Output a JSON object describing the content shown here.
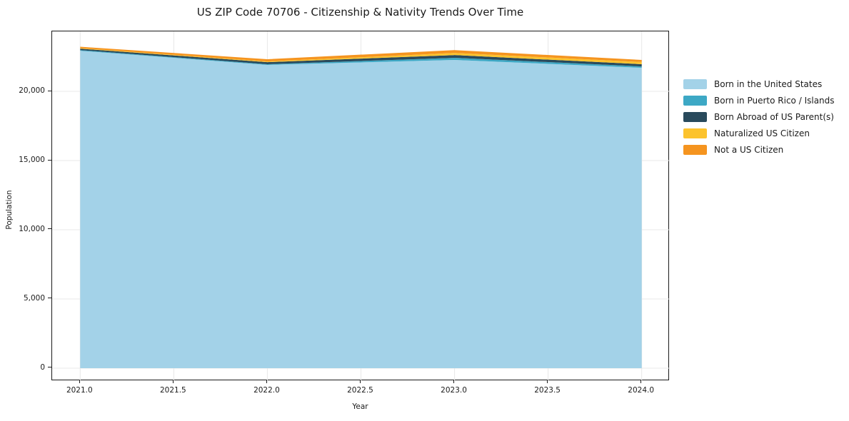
{
  "chart_data": {
    "type": "area",
    "stacked": true,
    "title": "US ZIP Code 70706 - Citizenship & Nativity Trends Over Time",
    "xlabel": "Year",
    "ylabel": "Population",
    "x": [
      2021,
      2022,
      2023,
      2024
    ],
    "series": [
      {
        "name": "Born in the United States",
        "color": "#a3d2e8",
        "values": [
          22930,
          21910,
          22270,
          21700
        ]
      },
      {
        "name": "Born in Puerto Rico / Islands",
        "color": "#3da8c5",
        "values": [
          50,
          50,
          150,
          100
        ]
      },
      {
        "name": "Born Abroad of US Parent(s)",
        "color": "#294a5c",
        "values": [
          100,
          150,
          200,
          160
        ]
      },
      {
        "name": "Naturalized US Citizen",
        "color": "#fcc32d",
        "values": [
          40,
          50,
          150,
          160
        ]
      },
      {
        "name": "Not a US Citizen",
        "color": "#f5941f",
        "values": [
          100,
          160,
          210,
          150
        ]
      }
    ],
    "xticks": {
      "values": [
        2021.0,
        2021.5,
        2022.0,
        2022.5,
        2023.0,
        2023.5,
        2024.0
      ],
      "labels": [
        "2021.0",
        "2021.5",
        "2022.0",
        "2022.5",
        "2023.0",
        "2023.5",
        "2024.0"
      ]
    },
    "yticks": {
      "values": [
        0,
        5000,
        10000,
        15000,
        20000
      ],
      "labels": [
        "0",
        "5,000",
        "10,000",
        "15,000",
        "20,000"
      ]
    },
    "xlim": [
      2020.85,
      2024.15
    ],
    "ylim": [
      -928,
      24330
    ],
    "grid": true,
    "grid_color": "#e8e8e8",
    "legend_position": "right"
  }
}
